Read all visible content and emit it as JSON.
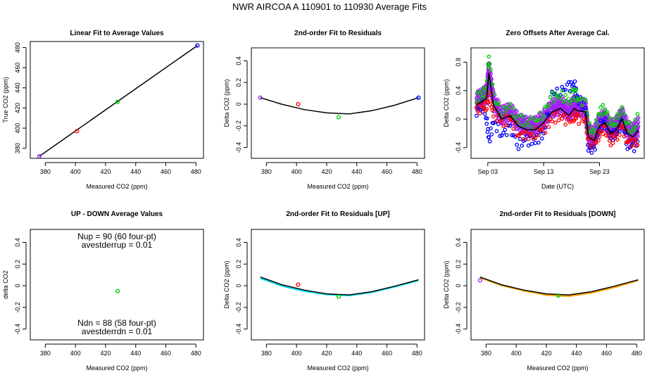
{
  "figure": {
    "title": "NWR   AIRCOA A   110901 to 110930   Average Fits"
  },
  "colors": {
    "purple": "#a020f0",
    "red": "#ff0000",
    "green": "#00cc00",
    "blue": "#0000ff",
    "cyan": "#00e5ee",
    "orange": "#ffa500",
    "black": "#000000"
  },
  "chart_data": [
    {
      "id": "p1",
      "type": "scatter",
      "title": "Linear Fit to Average Values",
      "xlabel": "Measured CO2 (ppm)",
      "ylabel": "True CO2 (ppm)",
      "xlim": [
        370,
        485
      ],
      "ylim": [
        370,
        486
      ],
      "xticks": [
        380,
        400,
        420,
        440,
        460,
        480
      ],
      "yticks": [
        380,
        400,
        420,
        440,
        460,
        480
      ],
      "points": [
        {
          "x": 376,
          "y": 372,
          "color": "purple"
        },
        {
          "x": 401,
          "y": 397,
          "color": "red"
        },
        {
          "x": 428,
          "y": 426,
          "color": "green"
        },
        {
          "x": 481,
          "y": 482,
          "color": "blue"
        }
      ],
      "lines": [
        {
          "name": "linear fit",
          "color": "black",
          "x": [
            376,
            481
          ],
          "y": [
            372,
            482
          ]
        }
      ]
    },
    {
      "id": "p2",
      "type": "scatter",
      "title": "2nd-order Fit to Residuals",
      "xlabel": "Measured CO2 (ppm)",
      "ylabel": "Delta CO2 (ppm)",
      "xlim": [
        370,
        485
      ],
      "ylim": [
        -0.5,
        0.52
      ],
      "xticks": [
        380,
        400,
        420,
        440,
        460,
        480
      ],
      "yticks": [
        -0.4,
        -0.2,
        0.0,
        0.2,
        0.4
      ],
      "points": [
        {
          "x": 376,
          "y": 0.06,
          "color": "purple"
        },
        {
          "x": 401,
          "y": 0.0,
          "color": "red"
        },
        {
          "x": 428,
          "y": -0.12,
          "color": "green"
        },
        {
          "x": 481,
          "y": 0.06,
          "color": "blue"
        }
      ],
      "lines": [
        {
          "name": "quadratic fit",
          "color": "black",
          "x": [
            376,
            390,
            405,
            420,
            435,
            450,
            465,
            481
          ],
          "y": [
            0.06,
            0.0,
            -0.05,
            -0.08,
            -0.09,
            -0.06,
            -0.01,
            0.06
          ]
        }
      ]
    },
    {
      "id": "p3",
      "type": "line",
      "title": "Zero Offsets After Average Cal.",
      "xlabel": "Date (UTC)",
      "ylabel": "Delta CO2 (ppm)",
      "xlim": [
        0,
        31
      ],
      "ylim": [
        -0.55,
        1.0
      ],
      "xticks": [
        3,
        13,
        23
      ],
      "xticklabels": [
        "Sep 03",
        "Sep 13",
        "Sep 23"
      ],
      "yticks": [
        -0.4,
        0.0,
        0.4,
        0.8
      ],
      "series": [
        {
          "name": "mean",
          "color": "black",
          "x": [
            1.0,
            2.0,
            2.8,
            3.2,
            4.0,
            5.5,
            7.0,
            8.5,
            10.0,
            11.5,
            13.0,
            14.5,
            16.0,
            17.5,
            18.5,
            19.0,
            20.5,
            21.0,
            22.0,
            23.0,
            24.0,
            25.0,
            26.0,
            27.0,
            28.0,
            29.0,
            30.0
          ],
          "y": [
            0.2,
            0.25,
            0.3,
            0.65,
            0.2,
            0.0,
            0.05,
            -0.1,
            -0.15,
            -0.15,
            -0.05,
            0.1,
            0.15,
            0.05,
            0.15,
            0.12,
            0.1,
            -0.25,
            -0.3,
            -0.1,
            -0.05,
            -0.2,
            -0.15,
            0.0,
            -0.2,
            -0.25,
            -0.15
          ]
        },
        {
          "name": "purple",
          "color": "purple",
          "x": [
            1.0,
            2.0,
            2.8,
            3.2,
            4.0,
            5.5,
            7.0,
            8.5,
            10.0,
            11.5,
            13.0,
            14.5,
            16.0,
            17.5,
            18.5,
            19.0,
            20.5,
            21.0,
            22.0,
            23.0,
            24.0,
            25.0,
            26.0,
            27.0,
            28.0,
            29.0,
            30.0
          ],
          "y": [
            0.25,
            0.3,
            0.35,
            0.7,
            0.25,
            0.05,
            0.1,
            -0.05,
            -0.1,
            -0.1,
            0.0,
            0.15,
            0.2,
            0.1,
            0.2,
            0.17,
            0.15,
            -0.2,
            -0.25,
            -0.05,
            0.0,
            -0.15,
            -0.1,
            0.05,
            -0.15,
            -0.2,
            -0.1
          ]
        },
        {
          "name": "green",
          "color": "green",
          "x": [
            1.0,
            2.0,
            2.8,
            3.2,
            4.0,
            5.5,
            7.0,
            8.5,
            10.0,
            11.5,
            13.0,
            14.5,
            16.0,
            17.5,
            18.5,
            19.0,
            20.5,
            21.0,
            22.0,
            23.0,
            24.0,
            25.0,
            26.0,
            27.0,
            28.0,
            29.0,
            30.0
          ],
          "y": [
            0.3,
            0.35,
            0.4,
            0.9,
            0.3,
            0.1,
            0.15,
            0.0,
            -0.05,
            -0.05,
            0.1,
            0.3,
            0.35,
            0.25,
            0.4,
            0.3,
            0.2,
            -0.1,
            -0.2,
            0.1,
            0.15,
            -0.1,
            0.0,
            0.1,
            -0.1,
            -0.15,
            0.05
          ]
        },
        {
          "name": "red",
          "color": "red",
          "x": [
            1.0,
            2.0,
            2.8,
            3.2,
            4.0,
            5.5,
            7.0,
            8.5,
            10.0,
            11.5,
            13.0,
            14.5,
            16.0,
            17.5,
            18.5,
            19.0,
            20.5,
            21.0,
            22.0,
            23.0,
            24.0,
            25.0,
            26.0,
            27.0,
            28.0,
            29.0,
            30.0
          ],
          "y": [
            0.15,
            0.15,
            0.2,
            0.3,
            0.1,
            -0.05,
            0.0,
            -0.2,
            -0.25,
            -0.2,
            -0.15,
            0.0,
            0.05,
            -0.05,
            0.05,
            0.0,
            0.0,
            -0.3,
            -0.35,
            -0.2,
            -0.15,
            -0.3,
            -0.25,
            -0.1,
            -0.3,
            -0.35,
            -0.3
          ]
        },
        {
          "name": "blue",
          "color": "blue",
          "x": [
            1.0,
            2.0,
            2.8,
            3.2,
            4.0,
            5.5,
            7.0,
            8.5,
            10.0,
            11.5,
            13.0,
            14.5,
            16.0,
            17.5,
            18.5,
            19.0,
            20.5,
            21.0,
            22.0,
            23.0,
            24.0,
            25.0,
            26.0,
            27.0,
            28.0,
            29.0,
            30.0
          ],
          "y": [
            0.1,
            0.2,
            0.0,
            -0.3,
            -0.05,
            -0.2,
            -0.15,
            -0.35,
            -0.3,
            -0.3,
            -0.2,
            0.35,
            0.4,
            0.45,
            0.5,
            0.3,
            0.15,
            -0.4,
            -0.45,
            -0.1,
            -0.05,
            -0.25,
            -0.2,
            -0.05,
            -0.35,
            -0.4,
            -0.3
          ]
        }
      ]
    },
    {
      "id": "p4",
      "type": "scatter",
      "title": "UP - DOWN Average Values",
      "xlabel": "Measured CO2 (ppm)",
      "ylabel": "delta CO2",
      "xlim": [
        370,
        485
      ],
      "ylim": [
        -0.5,
        0.52
      ],
      "xticks": [
        380,
        400,
        420,
        440,
        460,
        480
      ],
      "yticks": [
        -0.4,
        -0.2,
        0.0,
        0.2,
        0.4
      ],
      "points": [
        {
          "x": 428,
          "y": -0.05,
          "color": "green"
        }
      ],
      "annotations": {
        "nup": "Nup = 90 (60 four-pt)",
        "avestderrup": "avestderrup =  0.01",
        "ndn": "Ndn = 88 (58 four-pt)",
        "avestderrdn": "avestderrdn =  0.01"
      }
    },
    {
      "id": "p5",
      "type": "scatter",
      "title": "2nd-order Fit to Residuals [UP]",
      "xlabel": "Measured CO2 (ppm)",
      "ylabel": "Delta CO2 (ppm)",
      "xlim": [
        370,
        485
      ],
      "ylim": [
        -0.5,
        0.52
      ],
      "xticks": [
        380,
        400,
        420,
        440,
        460,
        480
      ],
      "yticks": [
        -0.4,
        -0.2,
        0.0,
        0.2,
        0.4
      ],
      "points": [
        {
          "x": 401,
          "y": 0.01,
          "color": "red"
        },
        {
          "x": 428,
          "y": -0.1,
          "color": "green"
        }
      ],
      "lines": [
        {
          "name": "UP fit",
          "color": "cyan",
          "x": [
            376,
            390,
            405,
            420,
            435,
            450,
            465,
            481
          ],
          "y": [
            0.07,
            0.0,
            -0.05,
            -0.08,
            -0.09,
            -0.06,
            -0.01,
            0.05
          ]
        },
        {
          "name": "average fit",
          "color": "black",
          "x": [
            376,
            390,
            405,
            420,
            435,
            450,
            465,
            481
          ],
          "y": [
            0.08,
            0.01,
            -0.04,
            -0.075,
            -0.085,
            -0.055,
            -0.005,
            0.055
          ]
        }
      ]
    },
    {
      "id": "p6",
      "type": "scatter",
      "title": "2nd-order Fit to Residuals [DOWN]",
      "xlabel": "Measured CO2 (ppm)",
      "ylabel": "Delta CO2 (ppm)",
      "xlim": [
        370,
        485
      ],
      "ylim": [
        -0.5,
        0.52
      ],
      "xticks": [
        380,
        400,
        420,
        440,
        460,
        480
      ],
      "yticks": [
        -0.4,
        -0.2,
        0.0,
        0.2,
        0.4
      ],
      "points": [
        {
          "x": 376,
          "y": 0.05,
          "color": "purple"
        },
        {
          "x": 428,
          "y": -0.09,
          "color": "green"
        }
      ],
      "lines": [
        {
          "name": "DOWN fit",
          "color": "orange",
          "x": [
            376,
            390,
            405,
            420,
            435,
            450,
            465,
            481
          ],
          "y": [
            0.075,
            0.005,
            -0.045,
            -0.085,
            -0.095,
            -0.065,
            -0.015,
            0.05
          ]
        },
        {
          "name": "average fit",
          "color": "black",
          "x": [
            376,
            390,
            405,
            420,
            435,
            450,
            465,
            481
          ],
          "y": [
            0.08,
            0.01,
            -0.04,
            -0.075,
            -0.085,
            -0.055,
            -0.005,
            0.055
          ]
        }
      ]
    }
  ]
}
